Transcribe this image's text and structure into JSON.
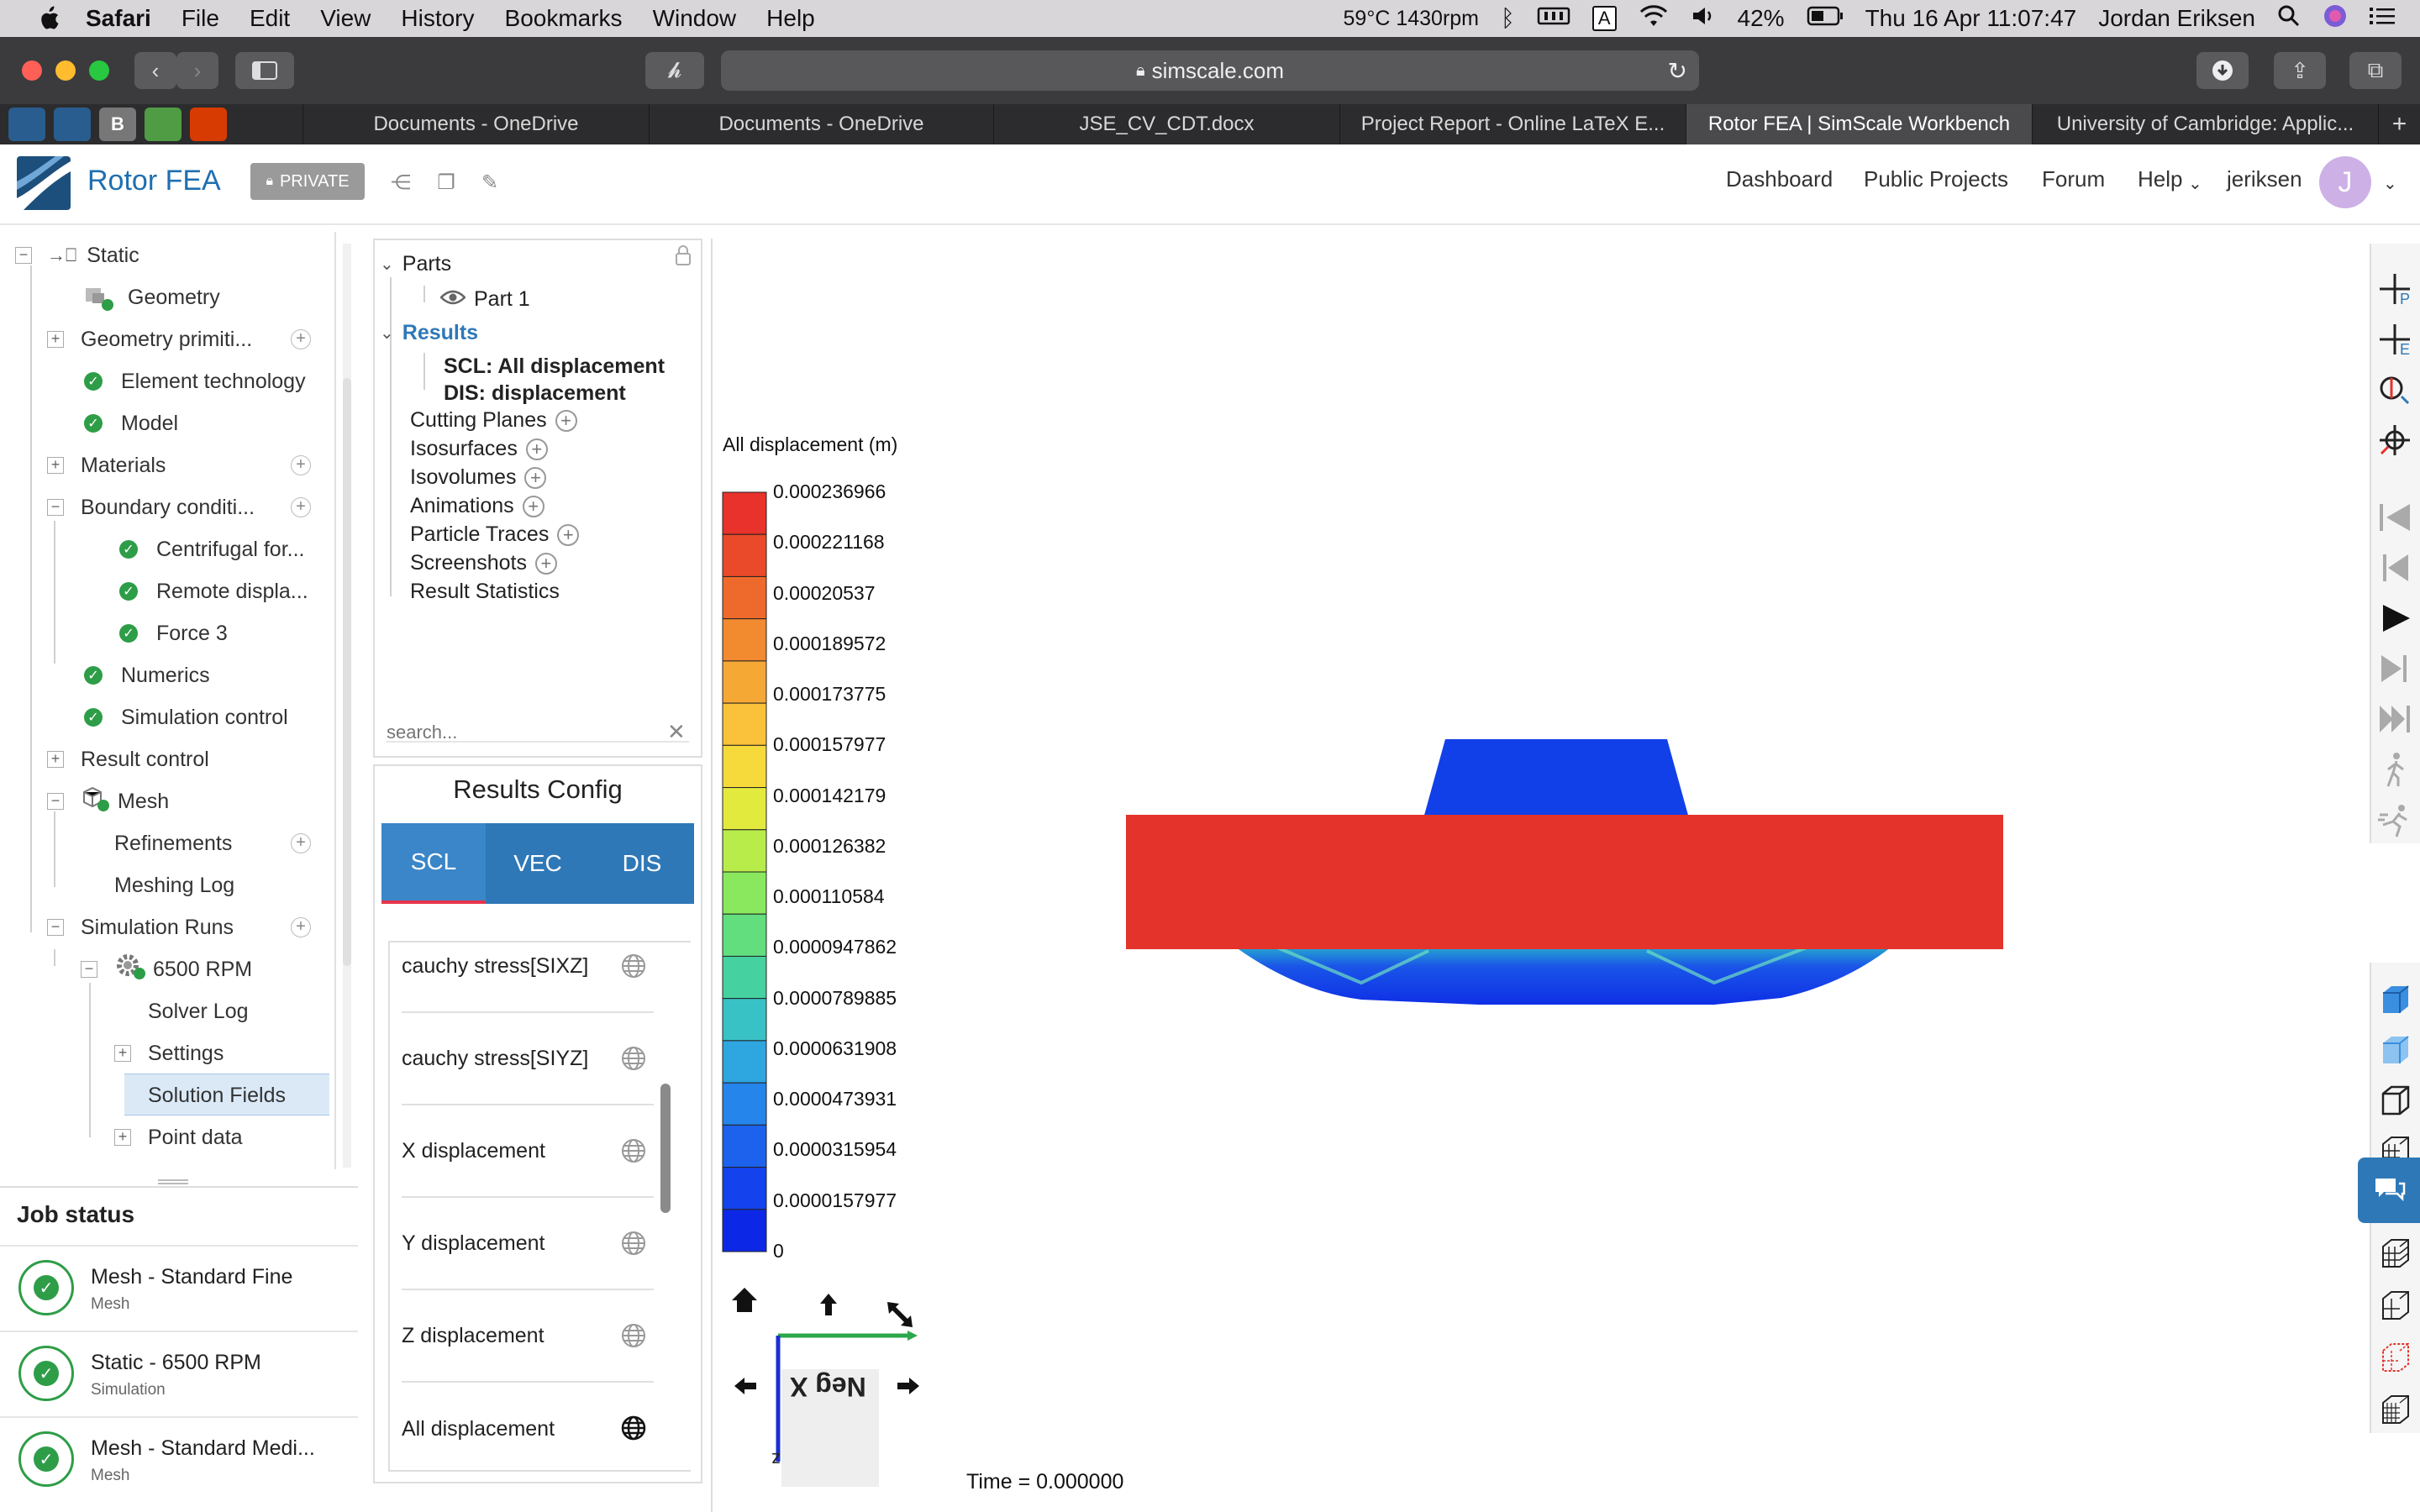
{
  "menubar": {
    "app": "Safari",
    "items": [
      "File",
      "Edit",
      "View",
      "History",
      "Bookmarks",
      "Window",
      "Help"
    ],
    "temp": "59°C 1430rpm",
    "input_badge": "A",
    "battery": "42%",
    "datetime": "Thu 16 Apr  11:07:47",
    "user": "Jordan Eriksen"
  },
  "browser": {
    "url": "simscale.com",
    "tabs": [
      "Documents - OneDrive",
      "Documents - OneDrive",
      "JSE_CV_CDT.docx",
      "Project Report - Online LaTeX E...",
      "Rotor FEA | SimScale Workbench",
      "University of Cambridge: Applic..."
    ],
    "active_tab": 4,
    "pinned_b": "B"
  },
  "header": {
    "project": "Rotor FEA",
    "private": "PRIVATE",
    "nav": [
      "Dashboard",
      "Public Projects",
      "Forum",
      "Help"
    ],
    "username": "jeriksen",
    "avatar": "J"
  },
  "tree": {
    "items": [
      "Static",
      "Geometry",
      "Geometry primiti...",
      "Element technology",
      "Model",
      "Materials",
      "Boundary conditi...",
      "Centrifugal for...",
      "Remote displa...",
      "Force 3",
      "Numerics",
      "Simulation control",
      "Result control",
      "Mesh",
      "Refinements",
      "Meshing Log",
      "Simulation Runs",
      "6500 RPM",
      "Solver Log",
      "Settings",
      "Solution Fields",
      "Point data"
    ]
  },
  "jobs": {
    "title": "Job status",
    "items": [
      {
        "name": "Mesh - Standard Fine",
        "sub": "Mesh"
      },
      {
        "name": "Static - 6500 RPM",
        "sub": "Simulation"
      },
      {
        "name": "Mesh - Standard Medi...",
        "sub": "Mesh"
      }
    ]
  },
  "post": {
    "parts": "Parts",
    "part1": "Part 1",
    "results": "Results",
    "scl": "SCL: All displacement",
    "dis": "DIS: displacement",
    "tools": [
      "Cutting Planes",
      "Isosurfaces",
      "Isovolumes",
      "Animations",
      "Particle Traces",
      "Screenshots"
    ],
    "stats": "Result Statistics",
    "search_placeholder": "search..."
  },
  "config": {
    "title": "Results Config",
    "tabs": [
      "SCL",
      "VEC",
      "DIS"
    ],
    "fields": [
      "cauchy stress[SIXZ]",
      "cauchy stress[SIYZ]",
      "X displacement",
      "Y displacement",
      "Z displacement",
      "All displacement"
    ]
  },
  "legend": {
    "title": "All displacement (m)",
    "ticks": [
      "0.000236966",
      "0.000221168",
      "0.00020537",
      "0.000189572",
      "0.000173775",
      "0.000157977",
      "0.000142179",
      "0.000126382",
      "0.000110584",
      "0.0000947862",
      "0.0000789885",
      "0.0000631908",
      "0.0000473931",
      "0.0000315954",
      "0.0000157977",
      "0"
    ],
    "colors": [
      "#e8322b",
      "#ea4a2a",
      "#ee6a2c",
      "#f28a30",
      "#f6a835",
      "#f9c23a",
      "#f6da3c",
      "#e3ea3e",
      "#b8ec4a",
      "#8ae85e",
      "#62de7e",
      "#46d2a0",
      "#38c2c6",
      "#2ea6e0",
      "#2685ea",
      "#1c62ec",
      "#1442ec",
      "#0c28e6"
    ]
  },
  "viewport": {
    "time": "Time = 0.000000",
    "axis_label": "Neg X",
    "axis_letter": "z"
  }
}
